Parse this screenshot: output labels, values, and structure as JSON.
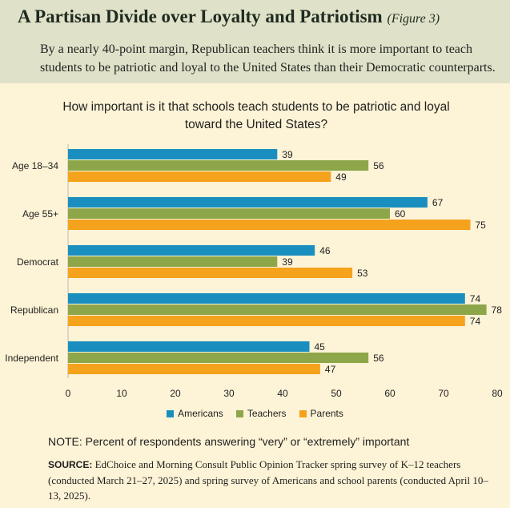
{
  "header": {
    "title": "A Partisan Divide over Loyalty and Patriotism",
    "figure_label": "(Figure 3)",
    "subtitle": "By a nearly 40-point margin, Republican teachers think it is more important to teach students to be patriotic and loyal to the United States than their Democratic counterparts."
  },
  "chart_data": {
    "type": "bar",
    "orientation": "horizontal",
    "title": "How important is it that schools teach students to be patriotic and loyal toward the United States?",
    "categories": [
      "Age 18–34",
      "Age 55+",
      "Democrat",
      "Republican",
      "Independent"
    ],
    "series": [
      {
        "name": "Americans",
        "color": "#1a8fbf",
        "values": [
          39,
          67,
          46,
          74,
          45
        ]
      },
      {
        "name": "Teachers",
        "color": "#8ea64a",
        "values": [
          56,
          60,
          39,
          78,
          56
        ]
      },
      {
        "name": "Parents",
        "color": "#f5a21d",
        "values": [
          49,
          75,
          53,
          74,
          47
        ]
      }
    ],
    "xlim": [
      0,
      80
    ],
    "xticks": [
      "0",
      "10",
      "20",
      "30",
      "40",
      "50",
      "60",
      "70",
      "80"
    ],
    "legend_position": "bottom-center"
  },
  "footer": {
    "note_label": "NOTE:",
    "note_text": "Percent of respondents answering “very” or “extremely” important",
    "source_label": "SOURCE:",
    "source_text": "EdChoice and Morning Consult Public Opinion Tracker spring survey of K–12 teachers (conducted March 21–27, 2025) and spring survey of Americans and school parents (conducted April 10–13, 2025)."
  }
}
